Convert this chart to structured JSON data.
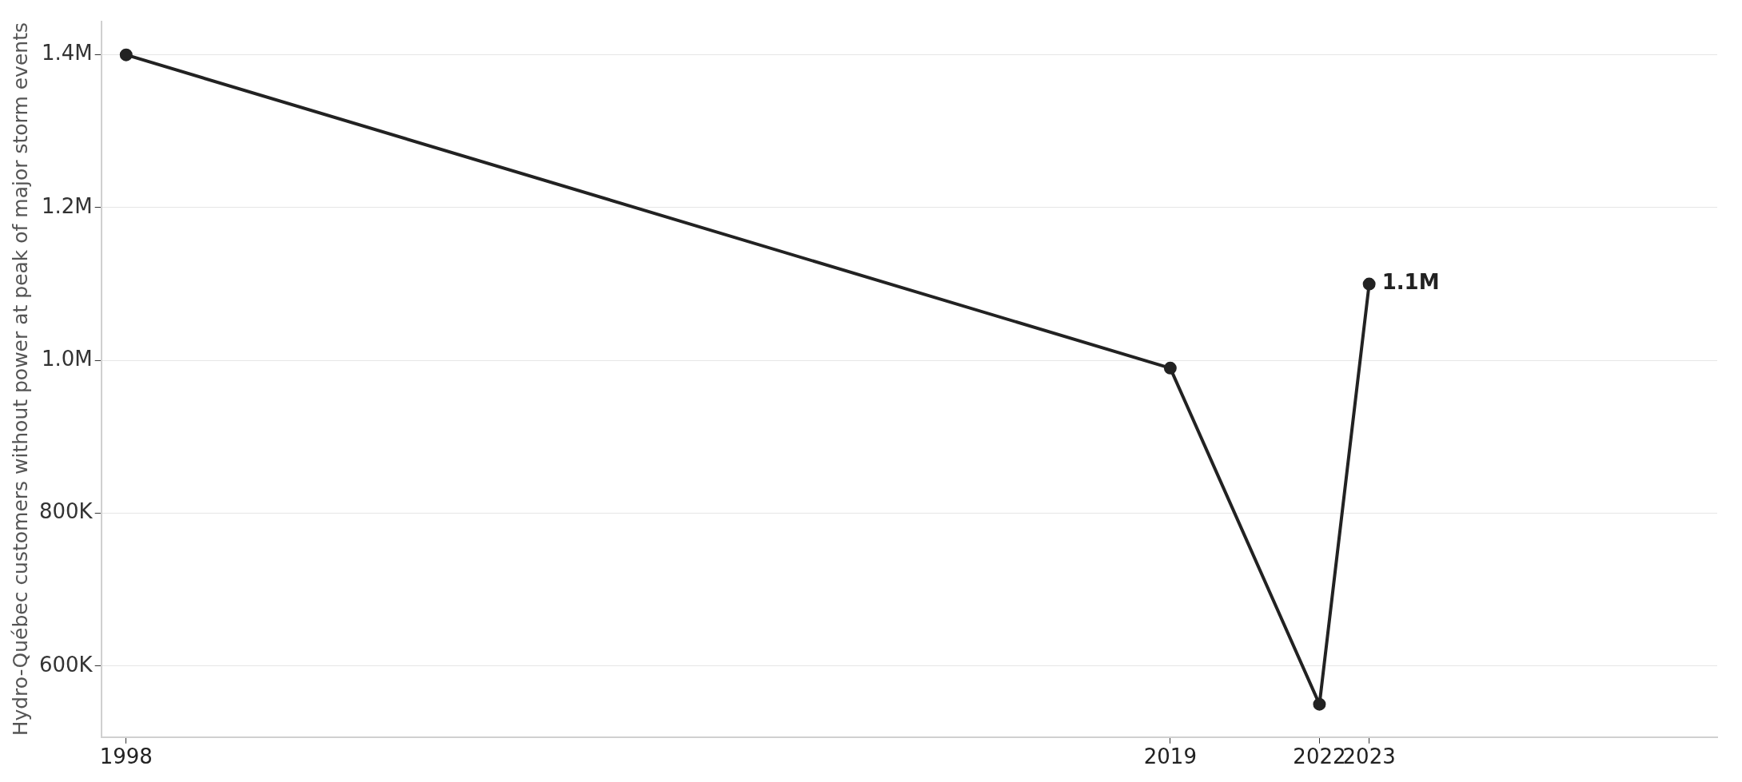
{
  "chart_data": {
    "type": "line",
    "ylabel": "Hydro-Québec customers without power at peak of major storm events",
    "x": [
      1998,
      2019,
      2022,
      2023
    ],
    "series": [
      {
        "color": "#222222",
        "values": [
          1400000,
          990000,
          550000,
          1100000
        ],
        "value_labels": [
          null,
          null,
          null,
          "1.1M"
        ]
      }
    ],
    "xlim": [
      1997.5,
      2030
    ],
    "xticks": [
      1998,
      2019,
      2022,
      2023
    ],
    "ylim": [
      507000,
      1444000
    ],
    "yticks": [
      {
        "value": 600000,
        "label": "600K"
      },
      {
        "value": 800000,
        "label": "800K"
      },
      {
        "value": 1000000,
        "label": "1.0M"
      },
      {
        "value": 1200000,
        "label": "1.2M"
      },
      {
        "value": 1400000,
        "label": "1.4M"
      }
    ],
    "grid": "y",
    "legend": false,
    "marker": "circle",
    "line_style": "solid"
  }
}
